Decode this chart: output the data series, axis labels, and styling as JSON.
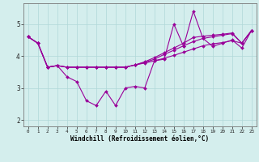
{
  "xlabel": "Windchill (Refroidissement éolien,°C)",
  "background_color": "#d4eeed",
  "line_color": "#990099",
  "grid_color": "#b0d8d8",
  "xlim_min": -0.5,
  "xlim_max": 23.5,
  "ylim_min": 1.8,
  "ylim_max": 5.65,
  "xticks": [
    0,
    1,
    2,
    3,
    4,
    5,
    6,
    7,
    8,
    9,
    10,
    11,
    12,
    13,
    14,
    15,
    16,
    17,
    18,
    19,
    20,
    21,
    22,
    23
  ],
  "yticks": [
    2,
    3,
    4,
    5
  ],
  "series": [
    [
      4.6,
      4.4,
      3.65,
      3.7,
      3.35,
      3.2,
      2.6,
      2.45,
      2.9,
      2.45,
      3.0,
      3.05,
      3.0,
      3.85,
      3.9,
      5.0,
      4.3,
      5.4,
      4.55,
      4.3,
      4.4,
      4.5,
      4.25,
      4.8
    ],
    [
      4.6,
      4.4,
      3.65,
      3.7,
      3.65,
      3.65,
      3.65,
      3.65,
      3.65,
      3.65,
      3.65,
      3.72,
      3.78,
      3.85,
      3.93,
      4.02,
      4.12,
      4.22,
      4.32,
      4.38,
      4.42,
      4.48,
      4.4,
      4.8
    ],
    [
      4.6,
      4.4,
      3.65,
      3.7,
      3.65,
      3.65,
      3.65,
      3.65,
      3.65,
      3.65,
      3.65,
      3.72,
      3.82,
      3.95,
      4.1,
      4.25,
      4.4,
      4.58,
      4.62,
      4.65,
      4.68,
      4.72,
      4.4,
      4.8
    ],
    [
      4.6,
      4.4,
      3.65,
      3.7,
      3.65,
      3.65,
      3.65,
      3.65,
      3.65,
      3.65,
      3.65,
      3.72,
      3.8,
      3.9,
      4.05,
      4.18,
      4.32,
      4.45,
      4.55,
      4.6,
      4.65,
      4.7,
      4.4,
      4.8
    ]
  ],
  "xlabel_fontsize": 5.5,
  "xtick_fontsize": 4.2,
  "ytick_fontsize": 5.5,
  "linewidth": 0.8,
  "markersize": 2.0
}
